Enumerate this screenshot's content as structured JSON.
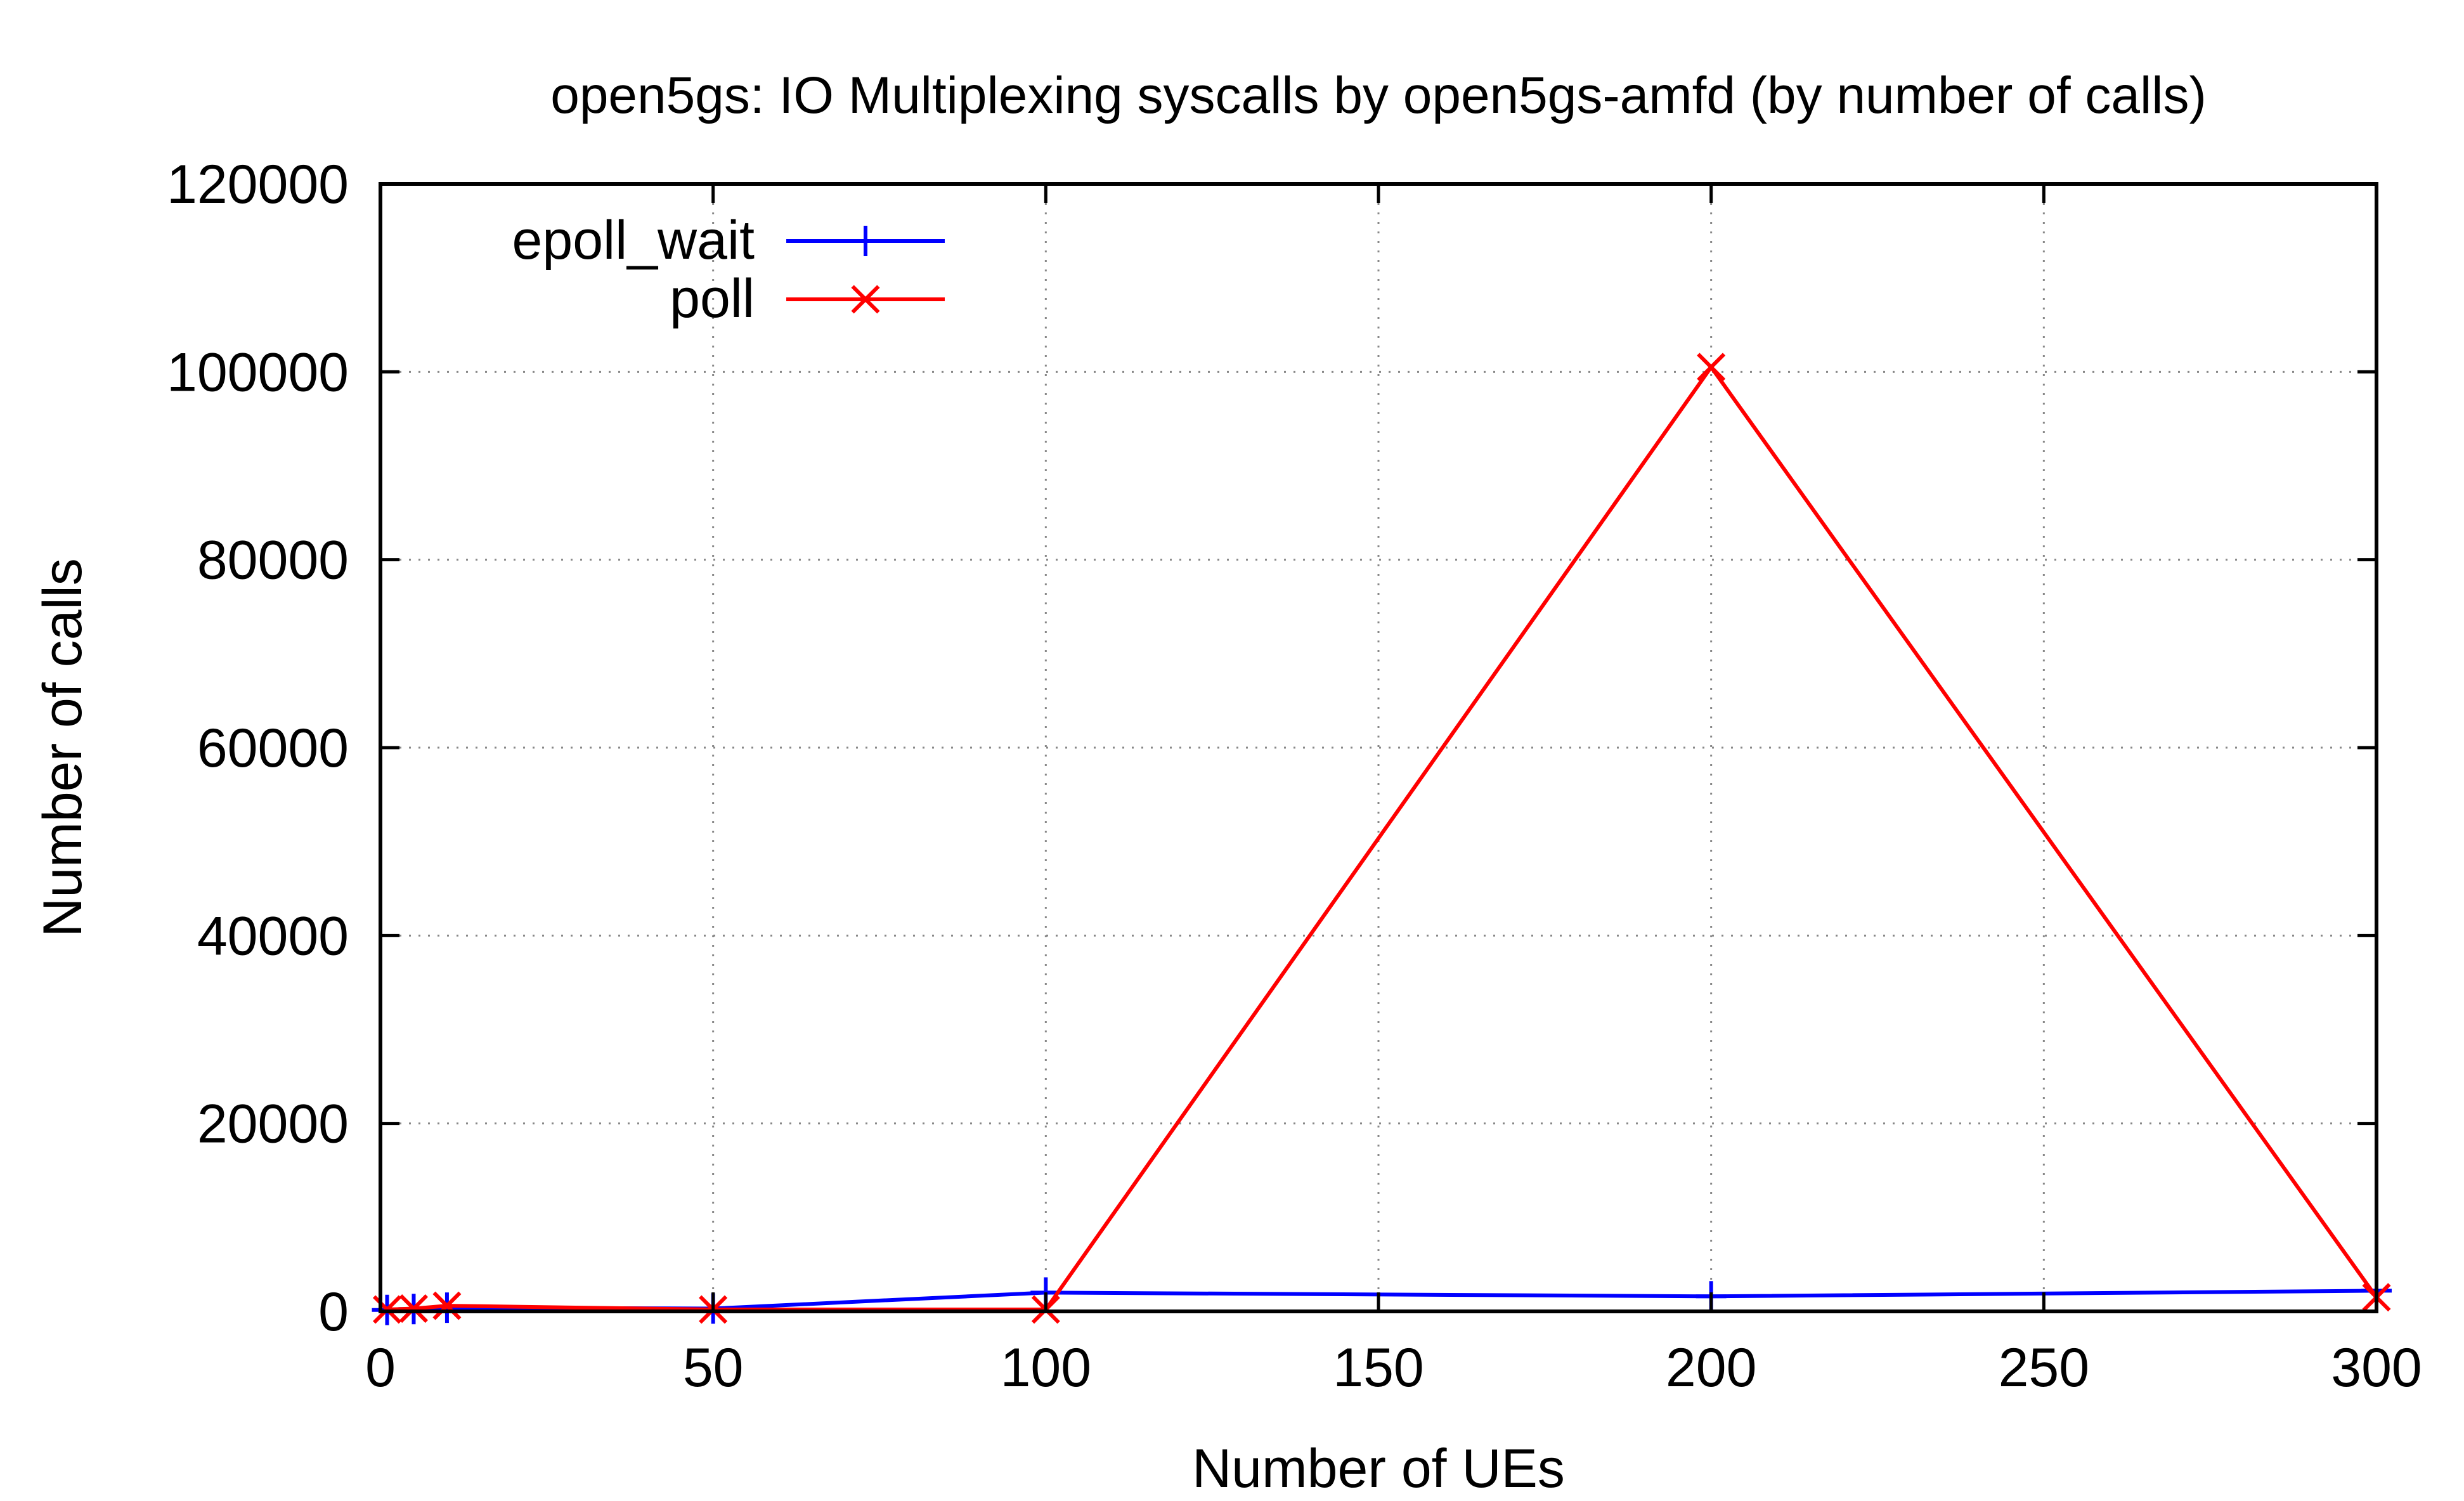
{
  "chart_data": {
    "type": "line",
    "title": "open5gs: IO Multiplexing syscalls by open5gs-amfd (by number of calls)",
    "xlabel": "Number of UEs",
    "ylabel": "Number of calls",
    "xlim": [
      0,
      300
    ],
    "ylim": [
      0,
      120000
    ],
    "xticks": [
      0,
      50,
      100,
      150,
      200,
      250,
      300
    ],
    "yticks": [
      0,
      20000,
      40000,
      60000,
      80000,
      100000,
      120000
    ],
    "grid": true,
    "legend_position": "top-left",
    "series": [
      {
        "name": "epoll_wait",
        "color": "#0000ff",
        "marker": "plus",
        "x": [
          1,
          5,
          10,
          50,
          100,
          200,
          300
        ],
        "y": [
          150,
          250,
          400,
          300,
          2000,
          1600,
          2200
        ]
      },
      {
        "name": "poll",
        "color": "#ff0000",
        "marker": "cross",
        "x": [
          1,
          5,
          10,
          50,
          100,
          200,
          300
        ],
        "y": [
          200,
          300,
          600,
          200,
          200,
          100500,
          1500
        ]
      }
    ]
  }
}
